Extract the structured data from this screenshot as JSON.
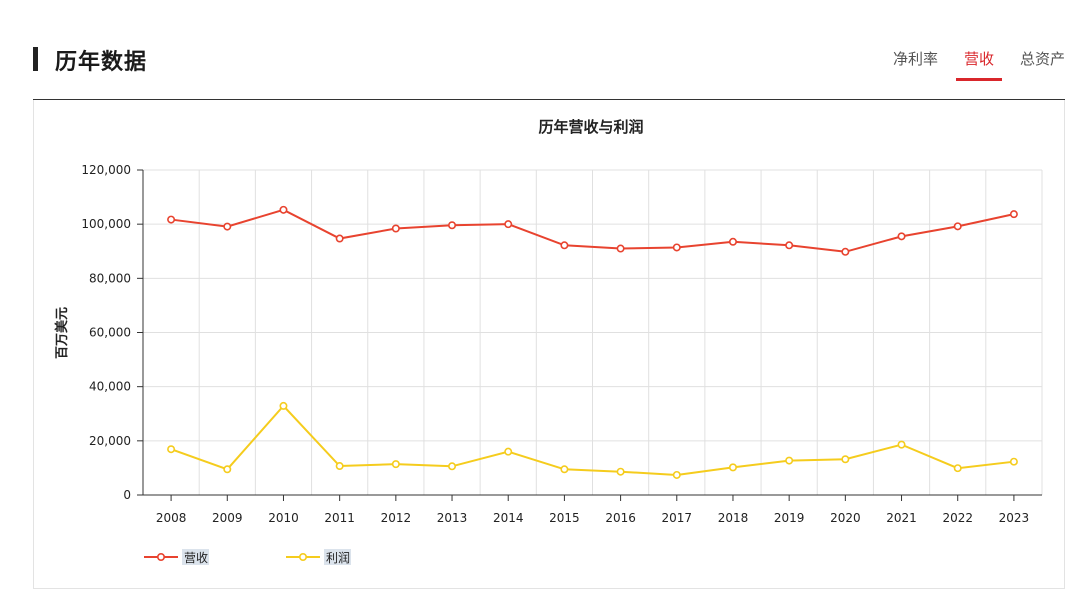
{
  "header": {
    "title": "历年数据",
    "tabs": [
      {
        "label": "净利率",
        "active": false
      },
      {
        "label": "营收",
        "active": true
      },
      {
        "label": "总资产",
        "active": false
      }
    ]
  },
  "colors": {
    "accent": "#d9262b",
    "revenue": "#e8432f",
    "profit": "#f5cc1d"
  },
  "chart_data": {
    "type": "line",
    "title": "历年营收与利润",
    "ylabel": "百万美元",
    "xlabel": "",
    "categories": [
      "2008",
      "2009",
      "2010",
      "2011",
      "2012",
      "2013",
      "2014",
      "2015",
      "2016",
      "2017",
      "2018",
      "2019",
      "2020",
      "2021",
      "2022",
      "2023"
    ],
    "ylim": [
      0,
      120000
    ],
    "yticks": [
      "0",
      "20,000",
      "40,000",
      "60,000",
      "80,000",
      "100,000",
      "120,000"
    ],
    "grid": true,
    "legend_position": "bottom-left",
    "series": [
      {
        "name": "营收",
        "color": "#e8432f",
        "values": [
          101700,
          99100,
          105300,
          94700,
          98400,
          99600,
          100000,
          92200,
          91000,
          91400,
          93500,
          92200,
          89800,
          95500,
          99200,
          103700
        ]
      },
      {
        "name": "利润",
        "color": "#f5cc1d",
        "values": [
          16900,
          9500,
          32900,
          10700,
          11400,
          10600,
          16000,
          9500,
          8600,
          7400,
          10200,
          12700,
          13200,
          18600,
          9900,
          12300
        ]
      }
    ]
  }
}
